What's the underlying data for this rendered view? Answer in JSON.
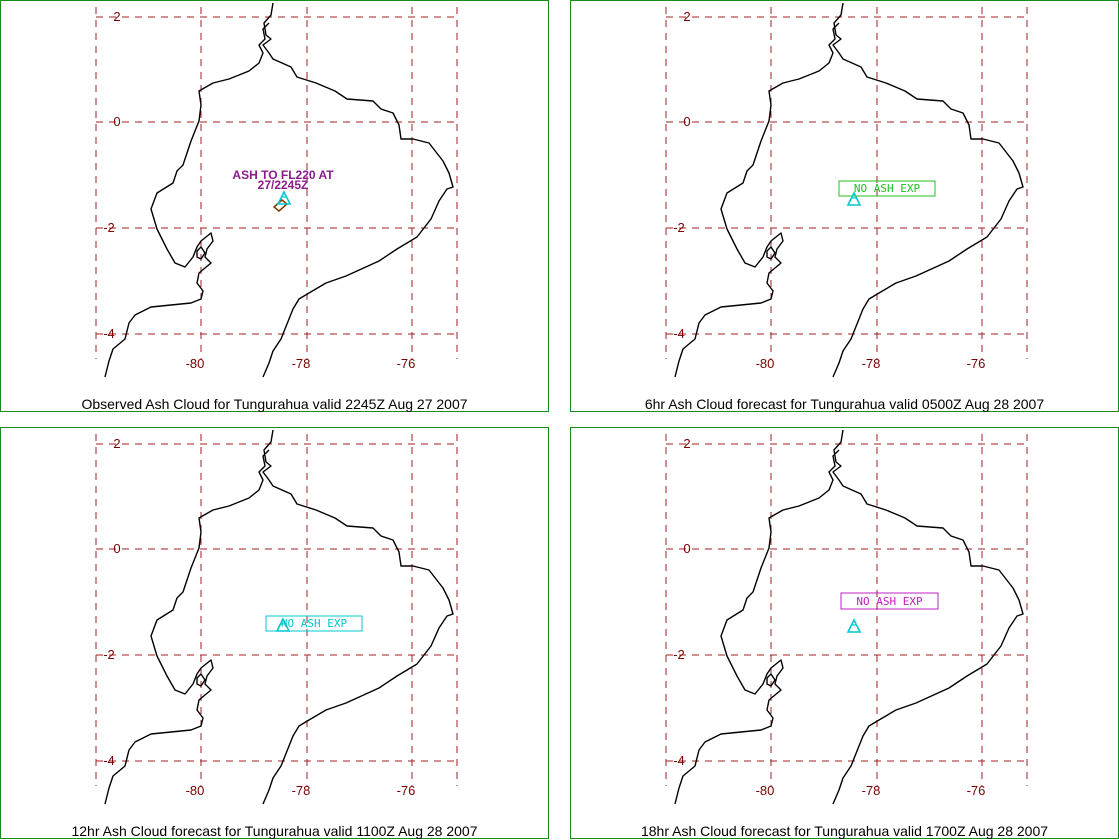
{
  "panels": [
    {
      "caption": "Observed Ash Cloud for Tungurahua valid 2245Z Aug 27 2007",
      "annotation": {
        "lines": [
          "ASH TO FL220 AT",
          "27/2245Z"
        ],
        "color": "#8b1a8b",
        "boxed": false
      },
      "volcano_color": "#00c8d0",
      "ash_polygon": true
    },
    {
      "caption": "6hr Ash Cloud forecast for Tungurahua valid 0500Z Aug 28 2007",
      "annotation": {
        "lines": [
          "NO ASH EXP"
        ],
        "color": "#20c020",
        "boxed": true
      },
      "volcano_color": "#00c8d0",
      "ash_polygon": false
    },
    {
      "caption": "12hr Ash Cloud forecast for Tungurahua valid 1100Z Aug 28 2007",
      "annotation": {
        "lines": [
          "NO ASH EXP"
        ],
        "color": "#00c8d0",
        "boxed": true
      },
      "volcano_color": "#00c8d0",
      "ash_polygon": false
    },
    {
      "caption": "18hr Ash Cloud forecast for Tungurahua valid 1700Z Aug 28 2007",
      "annotation": {
        "lines": [
          "NO ASH EXP"
        ],
        "color": "#c020c0",
        "boxed": true
      },
      "volcano_color": "#00c8d0",
      "ash_polygon": false
    }
  ],
  "axes": {
    "lat_ticks": [
      "2",
      "0",
      "-2",
      "-4"
    ],
    "lon_ticks": [
      "-80",
      "-78",
      "-76"
    ]
  },
  "colors": {
    "panel_border": "#1a8a1a",
    "grid": "#a02020",
    "tick_label": "#7a0000",
    "coastline": "#000000"
  }
}
